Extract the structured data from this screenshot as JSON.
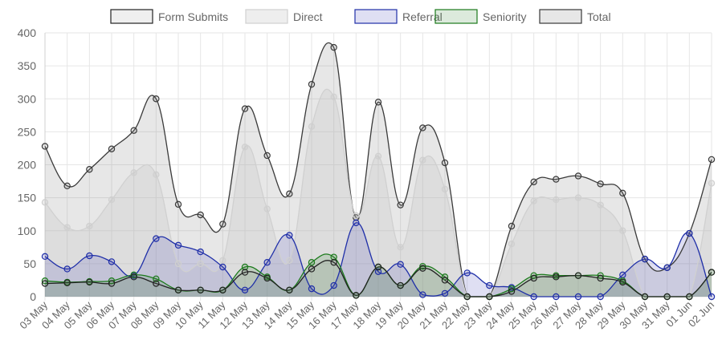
{
  "chart_data": {
    "type": "area",
    "x": [
      "03 May",
      "04 May",
      "05 May",
      "06 May",
      "07 May",
      "08 May",
      "09 May",
      "10 May",
      "11 May",
      "12 May",
      "13 May",
      "14 May",
      "15 May",
      "16 May",
      "17 May",
      "18 May",
      "19 May",
      "20 May",
      "21 May",
      "22 May",
      "23 May",
      "24 May",
      "25 May",
      "26 May",
      "27 May",
      "28 May",
      "29 May",
      "30 May",
      "31 May",
      "01 Jun",
      "02 Jun"
    ],
    "ylim": [
      0,
      400
    ],
    "yticks": [
      0,
      50,
      100,
      150,
      200,
      250,
      300,
      350,
      400
    ],
    "grid": true,
    "legend_position": "top",
    "series": [
      {
        "name": "Form Submits",
        "color": "#222222",
        "fill": "rgba(120,120,120,0.12)",
        "values": [
          20,
          21,
          22,
          20,
          30,
          20,
          10,
          10,
          10,
          37,
          28,
          10,
          42,
          52,
          2,
          45,
          17,
          43,
          25,
          0,
          0,
          8,
          28,
          30,
          32,
          28,
          22,
          0,
          0,
          0,
          37
        ]
      },
      {
        "name": "Direct",
        "color": "#d0d0d0",
        "fill": "rgba(200,200,200,0.30)",
        "values": [
          143,
          105,
          107,
          147,
          188,
          185,
          50,
          50,
          55,
          227,
          133,
          55,
          258,
          303,
          123,
          213,
          75,
          207,
          163,
          0,
          0,
          80,
          145,
          147,
          150,
          139,
          100,
          0,
          0,
          0,
          172
        ]
      },
      {
        "name": "Referral",
        "color": "#1f2fa8",
        "fill": "rgba(80,80,190,0.18)",
        "values": [
          61,
          42,
          62,
          53,
          32,
          88,
          78,
          68,
          45,
          10,
          52,
          93,
          12,
          17,
          112,
          38,
          49,
          3,
          5,
          36,
          17,
          14,
          0,
          0,
          0,
          0,
          33,
          57,
          44,
          96,
          0
        ]
      },
      {
        "name": "Seniority",
        "color": "#1c7a1c",
        "fill": "rgba(60,140,60,0.18)",
        "values": [
          24,
          22,
          23,
          24,
          33,
          27,
          10,
          10,
          10,
          45,
          30,
          10,
          52,
          60,
          2,
          45,
          17,
          46,
          30,
          0,
          0,
          12,
          32,
          32,
          32,
          32,
          24,
          0,
          0,
          0,
          37
        ]
      },
      {
        "name": "Total",
        "color": "#3a3a3a",
        "fill": "rgba(120,120,120,0.18)",
        "values": [
          228,
          168,
          193,
          224,
          252,
          300,
          140,
          124,
          110,
          285,
          214,
          156,
          322,
          378,
          120,
          295,
          139,
          256,
          203,
          0,
          0,
          107,
          174,
          178,
          183,
          171,
          157,
          57,
          44,
          96,
          208
        ]
      }
    ]
  }
}
